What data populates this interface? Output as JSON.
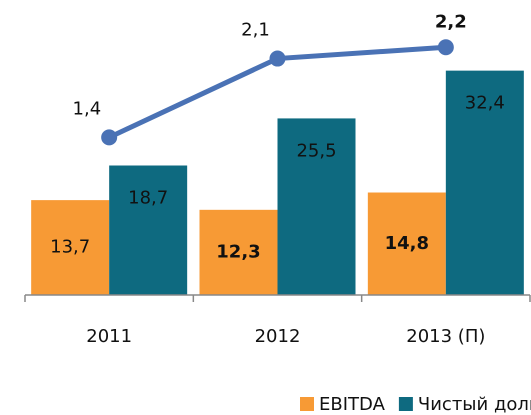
{
  "chart_data": {
    "type": "bar",
    "categories": [
      "2011",
      "2012",
      "2013 (П)"
    ],
    "series": [
      {
        "name": "EBITDA",
        "color": "#f79a35",
        "values": [
          13.7,
          12.3,
          14.8
        ],
        "value_labels": [
          "13,7",
          "12,3",
          "14,8"
        ],
        "bold": [
          false,
          true,
          true
        ]
      },
      {
        "name": "Чистый долг",
        "color": "#0e6a80",
        "values": [
          18.7,
          25.5,
          32.4
        ],
        "value_labels": [
          "18,7",
          "25,5",
          "32,4"
        ],
        "bold": [
          false,
          false,
          false
        ]
      },
      {
        "type": "line",
        "axis": "y2",
        "color": "#4a72b5",
        "values": [
          1.4,
          2.1,
          2.2
        ],
        "value_labels": [
          "1,4",
          "2,1",
          "2,2"
        ],
        "bold": [
          false,
          false,
          true
        ]
      }
    ],
    "ylim": [
      0,
      40
    ],
    "y2lim": [
      0,
      2.46
    ],
    "legend": "bottom"
  }
}
